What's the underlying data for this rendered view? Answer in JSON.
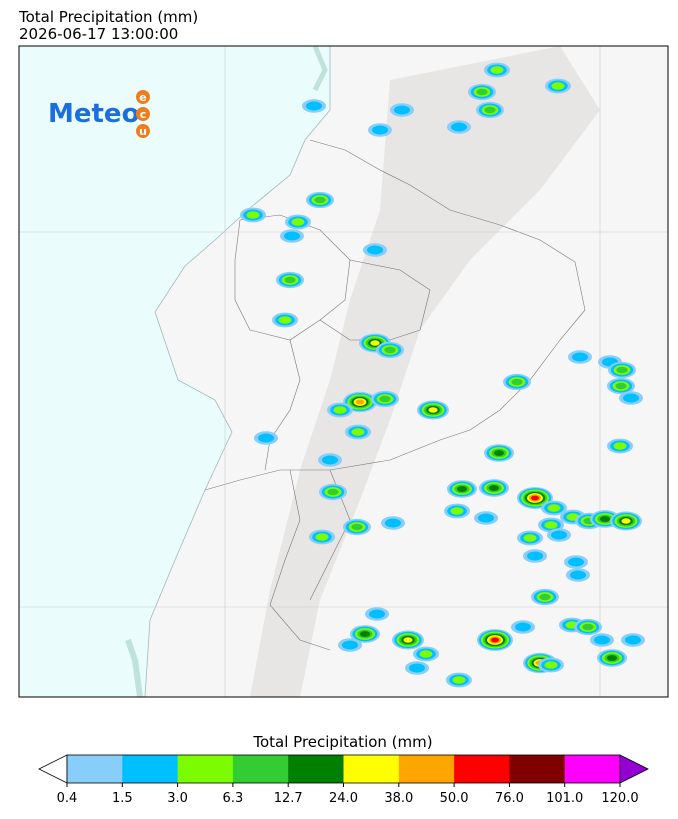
{
  "title": "Total Precipitation (mm)",
  "subtitle": "2026-06-17 13:00:00",
  "logo": {
    "text": "Meteo",
    "letters": [
      "e",
      "c",
      "u"
    ]
  },
  "colorbar": {
    "label": "Total Precipitation (mm)",
    "under_color": "#ffffff",
    "over_color": "#9400d3",
    "colors": [
      "#87cefa",
      "#00bfff",
      "#7cfc00",
      "#32cd32",
      "#008000",
      "#ffff00",
      "#ffa500",
      "#ff0000",
      "#800000",
      "#ff00ff"
    ],
    "ticks": [
      0.4,
      1.5,
      {
        "value": 3,
        "label": "3.0"
      },
      6.3,
      12.7,
      {
        "value": 24,
        "label": "24.0"
      },
      {
        "value": 38,
        "label": "38.0"
      },
      {
        "value": 50,
        "label": "50.0"
      },
      {
        "value": 76,
        "label": "76.0"
      },
      {
        "value": 101,
        "label": "101.0"
      },
      {
        "value": 120,
        "label": "120.0"
      }
    ]
  }
}
